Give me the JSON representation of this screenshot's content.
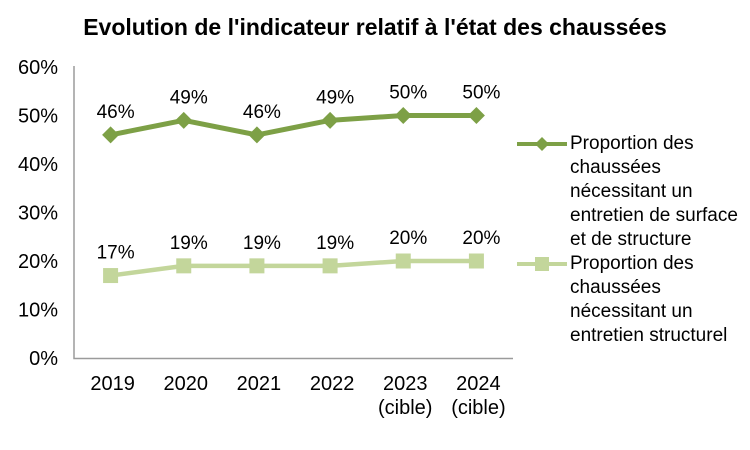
{
  "page": {
    "background": "#FFFFFF"
  },
  "chart_data": {
    "type": "line",
    "title": "Evolution de l'indicateur relatif à l'état des chaussées",
    "categories": [
      "2019",
      "2020",
      "2021",
      "2022",
      "2023 (cible)",
      "2024 (cible)"
    ],
    "categories_lines": [
      [
        "2019"
      ],
      [
        "2020"
      ],
      [
        "2021"
      ],
      [
        "2022"
      ],
      [
        "2023",
        "(cible)"
      ],
      [
        "2024",
        "(cible)"
      ]
    ],
    "y_ticks": [
      "0%",
      "10%",
      "20%",
      "30%",
      "40%",
      "50%",
      "60%"
    ],
    "ylim": [
      0,
      60
    ],
    "y_step": 10,
    "grid": false,
    "legend_position": "right",
    "axis_color": "#9B9B9B",
    "text_color": "#000000",
    "series": [
      {
        "name": "Proportion des chaussées nécessitant un entretien de surface et de structure",
        "marker": "diamond",
        "color": "#7DA046",
        "values": [
          46,
          49,
          46,
          49,
          50,
          50
        ],
        "data_labels": [
          "46%",
          "49%",
          "46%",
          "49%",
          "50%",
          "50%"
        ]
      },
      {
        "name": "Proportion des chaussées nécessitant un entretien structurel",
        "marker": "square",
        "color": "#C3D69B",
        "values": [
          17,
          19,
          19,
          19,
          20,
          20
        ],
        "data_labels": [
          "17%",
          "19%",
          "19%",
          "19%",
          "20%",
          "20%"
        ]
      }
    ]
  },
  "legend": {
    "items": [
      {
        "lines": [
          "Proportion des",
          "chaussées",
          "nécessitant un",
          "entretien de surface",
          "et de structure"
        ]
      },
      {
        "lines": [
          "Proportion des",
          "chaussées",
          "nécessitant un",
          "entretien structurel"
        ]
      }
    ]
  }
}
